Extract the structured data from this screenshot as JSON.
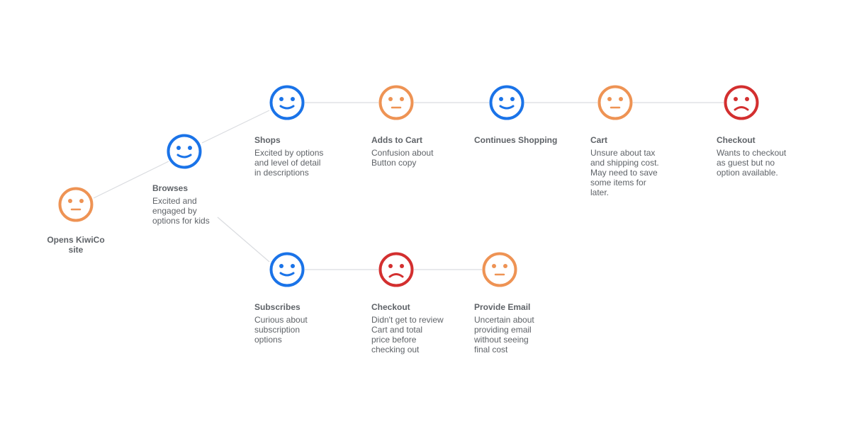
{
  "colors": {
    "happy": "#1a73e8",
    "neutral": "#ee9354",
    "sad": "#d32f2f",
    "connector": "#dadce0",
    "text": "#5f6368"
  },
  "steps": {
    "opens": {
      "title": "Opens KiwiCo\nsite",
      "mood": "neutral"
    },
    "browses": {
      "title": "Browses",
      "desc": "Excited and\nengaged by\noptions for kids",
      "mood": "happy"
    },
    "shops": {
      "title": "Shops",
      "desc": "Excited by options\nand level of detail\nin descriptions",
      "mood": "happy"
    },
    "adds_to_cart": {
      "title": "Adds to Cart",
      "desc": "Confusion about\nButton copy",
      "mood": "neutral"
    },
    "continues": {
      "title": "Continues Shopping",
      "mood": "happy"
    },
    "cart": {
      "title": "Cart",
      "desc": "Unsure about tax\nand shipping cost.\nMay need to save\nsome items for\nlater.",
      "mood": "neutral"
    },
    "checkout_top": {
      "title": "Checkout",
      "desc": "Wants to checkout\nas guest but no\noption available.",
      "mood": "sad"
    },
    "subscribes": {
      "title": "Subscribes",
      "desc": "Curious about\nsubscription\noptions",
      "mood": "happy"
    },
    "checkout_bottom": {
      "title": "Checkout",
      "desc": "Didn't get to review\nCart and total\nprice before\nchecking out",
      "mood": "sad"
    },
    "provide_email": {
      "title": "Provide Email",
      "desc": "Uncertain about\nproviding email\nwithout seeing\nfinal cost",
      "mood": "neutral"
    }
  }
}
